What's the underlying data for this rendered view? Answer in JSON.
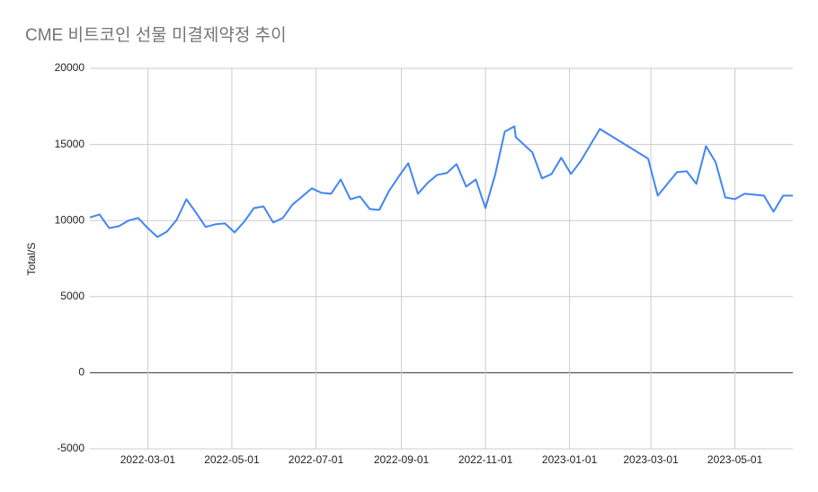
{
  "chart_data": {
    "type": "line",
    "title": "CME 비트코인 선물 미결제약정 추이",
    "y_label": "Total/S",
    "x": [
      "2022-01-18",
      "2022-01-25",
      "2022-02-01",
      "2022-02-08",
      "2022-02-15",
      "2022-02-22",
      "2022-03-01",
      "2022-03-08",
      "2022-03-15",
      "2022-03-22",
      "2022-03-29",
      "2022-04-05",
      "2022-04-12",
      "2022-04-19",
      "2022-04-26",
      "2022-05-03",
      "2022-05-10",
      "2022-05-17",
      "2022-05-24",
      "2022-05-31",
      "2022-06-07",
      "2022-06-14",
      "2022-06-21",
      "2022-06-28",
      "2022-07-05",
      "2022-07-12",
      "2022-07-19",
      "2022-07-26",
      "2022-08-02",
      "2022-08-09",
      "2022-08-16",
      "2022-08-23",
      "2022-08-30",
      "2022-09-06",
      "2022-09-13",
      "2022-09-20",
      "2022-09-27",
      "2022-10-04",
      "2022-10-11",
      "2022-10-18",
      "2022-10-25",
      "2022-11-01",
      "2022-11-08",
      "2022-11-15",
      "2022-11-22",
      "2022-11-23",
      "2022-12-05",
      "2022-12-12",
      "2022-12-19",
      "2022-12-26",
      "2023-01-02",
      "2023-01-09",
      "2023-01-23",
      "2023-02-27",
      "2023-03-06",
      "2023-03-20",
      "2023-03-27",
      "2023-04-03",
      "2023-04-10",
      "2023-04-17",
      "2023-04-24",
      "2023-05-01",
      "2023-05-08",
      "2023-05-22",
      "2023-05-29",
      "2023-06-05",
      "2023-06-12"
    ],
    "values": [
      10200,
      10400,
      9500,
      9630,
      10000,
      10170,
      9500,
      8920,
      9280,
      10050,
      11400,
      10520,
      9580,
      9750,
      9810,
      9220,
      9930,
      10820,
      10930,
      9870,
      10170,
      11050,
      11580,
      12120,
      11820,
      11760,
      12700,
      11400,
      11580,
      10760,
      10700,
      11940,
      12880,
      13770,
      11760,
      12470,
      13000,
      13120,
      13710,
      12230,
      12700,
      10820,
      13000,
      15840,
      16190,
      15480,
      14480,
      12770,
      13060,
      14130,
      13060,
      13890,
      16020,
      14070,
      11640,
      13180,
      13240,
      12410,
      14890,
      13830,
      11520,
      11410,
      11760,
      11640,
      10580,
      11640,
      11640
    ],
    "color": "#4285f4",
    "xlim": [
      "2022-01-18",
      "2023-06-12"
    ],
    "xticks": [
      "2022-03-01",
      "2022-05-01",
      "2022-07-01",
      "2022-09-01",
      "2022-11-01",
      "2023-01-01",
      "2023-03-01",
      "2023-05-01"
    ],
    "ylim": [
      -5000,
      20000
    ],
    "yticks": [
      -5000,
      0,
      5000,
      10000,
      15000,
      20000
    ],
    "grid": true
  }
}
